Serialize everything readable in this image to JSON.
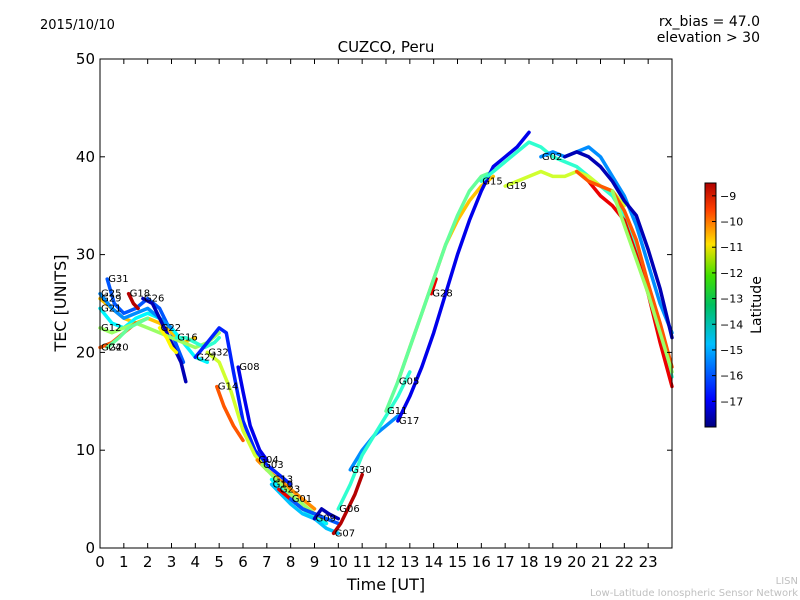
{
  "header": {
    "date": "2015/10/10",
    "rx_bias": "rx_bias = 47.0",
    "elevation": "elevation > 30",
    "title": "CUZCO, Peru"
  },
  "credits": {
    "line1": "LISN",
    "line2": "Low-Latitude Ionospheric Sensor Network"
  },
  "chart_data": {
    "type": "scatter",
    "title": "CUZCO, Peru",
    "xlabel": "Time [UT]",
    "ylabel": "TEC [UNITS]",
    "xlim": [
      0,
      24
    ],
    "ylim": [
      0,
      50
    ],
    "xticks": [
      0,
      1,
      2,
      3,
      4,
      5,
      6,
      7,
      8,
      9,
      10,
      11,
      12,
      13,
      14,
      15,
      16,
      17,
      18,
      19,
      20,
      21,
      22,
      23
    ],
    "yticks": [
      0,
      10,
      20,
      30,
      40,
      50
    ],
    "grid": false,
    "colorbar": {
      "label": "Latitude",
      "range": [
        -18,
        -8.5
      ],
      "ticks": [
        -9,
        -10,
        -11,
        -12,
        -13,
        -14,
        -15,
        -16,
        -17
      ],
      "colormap": "jet"
    },
    "series": [
      {
        "name": "G31",
        "lat": -16.0,
        "x": [
          0.3,
          0.6,
          1.0,
          1.5,
          2.0,
          2.5,
          3.0,
          3.5
        ],
        "y": [
          27.5,
          25.0,
          24.0,
          24.5,
          25.5,
          24.5,
          22.0,
          19.0
        ]
      },
      {
        "name": "G29",
        "lat": -11.5,
        "x": [
          0.0,
          0.5,
          1.0,
          1.5,
          2.0,
          2.5,
          3.0,
          3.5,
          4.0
        ],
        "y": [
          25.5,
          24.5,
          23.5,
          23.0,
          23.5,
          23.0,
          22.0,
          21.0,
          21.5
        ]
      },
      {
        "name": "G21",
        "lat": -14.5,
        "x": [
          0.0,
          0.5,
          1.0,
          1.5,
          2.0,
          2.5,
          3.0,
          3.5,
          4.0,
          4.5
        ],
        "y": [
          24.5,
          23.0,
          22.5,
          23.5,
          24.0,
          23.5,
          22.5,
          21.0,
          19.5,
          19.0
        ]
      },
      {
        "name": "G25",
        "lat": -15.5,
        "x": [
          0.0,
          0.5,
          1.0,
          1.5,
          2.0,
          2.5,
          3.0
        ],
        "y": [
          26.0,
          24.5,
          23.5,
          24.0,
          24.5,
          23.5,
          22.5
        ]
      },
      {
        "name": "G18",
        "lat": -9.0,
        "x": [
          1.2,
          1.4,
          1.6
        ],
        "y": [
          26.0,
          25.0,
          24.5
        ]
      },
      {
        "name": "G26",
        "lat": -17.5,
        "x": [
          1.8,
          2.2,
          2.6,
          3.0,
          3.4,
          3.6
        ],
        "y": [
          25.5,
          25.0,
          23.0,
          21.0,
          19.0,
          17.0
        ]
      },
      {
        "name": "G12",
        "lat": -13.0,
        "x": [
          0.0,
          0.5,
          1.0,
          1.5,
          2.0,
          2.5,
          3.0,
          3.5,
          4.0,
          4.5,
          5.0
        ],
        "y": [
          22.5,
          22.0,
          22.5,
          23.0,
          22.5,
          22.0,
          21.5,
          21.0,
          20.5,
          21.0,
          22.0
        ]
      },
      {
        "name": "G22",
        "lat": -12.0,
        "x": [
          2.5,
          2.8,
          3.0,
          3.2
        ],
        "y": [
          22.5,
          21.5,
          20.5,
          20.0
        ]
      },
      {
        "name": "G16",
        "lat": -14.0,
        "x": [
          3.2,
          3.6,
          4.0,
          4.4,
          4.8,
          5.0
        ],
        "y": [
          21.5,
          21.5,
          21.0,
          20.5,
          21.0,
          21.5
        ]
      },
      {
        "name": "G24",
        "lat": -10.5,
        "x": [
          0.0,
          0.5,
          1.0,
          1.5
        ],
        "y": [
          20.5,
          21.0,
          22.0,
          23.0
        ]
      },
      {
        "name": "G20",
        "lat": -13.5,
        "x": [
          0.3,
          0.8,
          1.2,
          1.6,
          2.0
        ],
        "y": [
          20.5,
          21.5,
          22.5,
          23.0,
          23.5
        ]
      },
      {
        "name": "G27",
        "lat": -16.5,
        "x": [
          4.0,
          4.5,
          5.0,
          5.3,
          5.6,
          6.0,
          6.5,
          7.0,
          7.5,
          8.0
        ],
        "y": [
          19.5,
          21.0,
          22.5,
          22.0,
          18.0,
          13.0,
          10.0,
          8.5,
          7.5,
          6.5
        ]
      },
      {
        "name": "G32",
        "lat": -12.5,
        "x": [
          4.5,
          5.0,
          5.5,
          6.0,
          6.5,
          7.0,
          7.5,
          8.0
        ],
        "y": [
          20.0,
          19.0,
          16.0,
          12.0,
          9.5,
          8.0,
          7.0,
          6.0
        ]
      },
      {
        "name": "G08",
        "lat": -17.0,
        "x": [
          5.8,
          6.0,
          6.3,
          6.7,
          7.0
        ],
        "y": [
          18.5,
          16.0,
          12.5,
          10.0,
          9.0
        ]
      },
      {
        "name": "G14",
        "lat": -10.5,
        "x": [
          4.9,
          5.2,
          5.6,
          6.0
        ],
        "y": [
          16.5,
          14.5,
          12.5,
          11.0
        ]
      },
      {
        "name": "G04",
        "lat": -11.0,
        "x": [
          6.6,
          7.0,
          7.5,
          8.0,
          8.5,
          9.0
        ],
        "y": [
          9.0,
          8.0,
          7.0,
          6.0,
          5.0,
          4.0
        ]
      },
      {
        "name": "G03",
        "lat": -13.0,
        "x": [
          6.8,
          7.2,
          7.6,
          8.0,
          8.5,
          9.0,
          9.5
        ],
        "y": [
          8.5,
          7.5,
          6.5,
          5.5,
          4.5,
          3.5,
          2.5
        ]
      },
      {
        "name": "G13",
        "lat": -14.5,
        "x": [
          7.2,
          7.6,
          8.0,
          8.5,
          9.0,
          9.5
        ],
        "y": [
          7.0,
          6.0,
          5.0,
          4.0,
          3.0,
          2.5
        ]
      },
      {
        "name": "G10",
        "lat": -15.0,
        "x": [
          7.2,
          7.6,
          8.0,
          8.5,
          9.0,
          9.5,
          10.0
        ],
        "y": [
          6.5,
          5.5,
          4.5,
          3.5,
          3.0,
          2.0,
          1.5
        ]
      },
      {
        "name": "G23",
        "lat": -9.5,
        "x": [
          7.5,
          8.0,
          8.5,
          9.0,
          9.5
        ],
        "y": [
          6.0,
          5.0,
          4.0,
          3.5,
          3.0
        ]
      },
      {
        "name": "G01",
        "lat": -16.0,
        "x": [
          8.0,
          8.5,
          9.0,
          9.5,
          10.0
        ],
        "y": [
          5.0,
          4.0,
          3.5,
          3.0,
          2.5
        ]
      },
      {
        "name": "G09",
        "lat": -17.5,
        "x": [
          9.0,
          9.3,
          9.6,
          10.0
        ],
        "y": [
          3.0,
          4.0,
          3.5,
          3.0
        ]
      },
      {
        "name": "G07",
        "lat": -9.0,
        "x": [
          9.8,
          10.1,
          10.4,
          10.7,
          11.0
        ],
        "y": [
          1.5,
          2.5,
          4.0,
          5.5,
          7.5
        ]
      },
      {
        "name": "G30",
        "lat": -15.5,
        "x": [
          10.5,
          11.0,
          11.5,
          12.0,
          12.5
        ],
        "y": [
          8.0,
          10.0,
          11.5,
          12.5,
          13.5
        ]
      },
      {
        "name": "G06",
        "lat": -14.0,
        "x": [
          10.0,
          10.5,
          11.0,
          11.5,
          12.0,
          12.5,
          13.0
        ],
        "y": [
          4.0,
          6.5,
          9.5,
          11.5,
          13.5,
          15.5,
          18.0
        ]
      },
      {
        "name": "G28",
        "lat": -9.5,
        "x": [
          13.9,
          14.1
        ],
        "y": [
          26.0,
          27.5
        ]
      },
      {
        "name": "G05",
        "lat": -11.5,
        "x": [
          12.5,
          13.0,
          13.5,
          14.0,
          14.5,
          15.0,
          15.5,
          16.0,
          16.5
        ],
        "y": [
          17.0,
          20.5,
          24.0,
          27.5,
          31.0,
          33.5,
          35.5,
          37.0,
          38.0
        ]
      },
      {
        "name": "G11",
        "lat": -13.5,
        "x": [
          12.0,
          12.5,
          13.0,
          13.5,
          14.0,
          14.5,
          15.0,
          15.5,
          16.0,
          16.5,
          17.0
        ],
        "y": [
          14.0,
          17.0,
          20.5,
          24.0,
          27.5,
          31.0,
          34.0,
          36.5,
          38.0,
          38.5,
          39.5
        ]
      },
      {
        "name": "G17",
        "lat": -17.0,
        "x": [
          12.5,
          13.0,
          13.5,
          14.0,
          14.5,
          15.0,
          15.5,
          16.0,
          16.5,
          17.0,
          17.5,
          18.0
        ],
        "y": [
          13.0,
          15.5,
          18.5,
          22.0,
          26.0,
          30.0,
          33.5,
          36.5,
          39.0,
          40.0,
          41.0,
          42.5
        ]
      },
      {
        "name": "G15",
        "lat": -14.0,
        "x": [
          16.0,
          16.5,
          17.0,
          17.5,
          18.0,
          18.5,
          19.0,
          19.5,
          20.0,
          20.5,
          21.0,
          21.5,
          22.0,
          22.5,
          23.0,
          23.5,
          24.0
        ],
        "y": [
          37.5,
          38.5,
          39.5,
          40.5,
          41.5,
          41.0,
          40.0,
          39.5,
          39.0,
          38.0,
          37.0,
          36.0,
          34.0,
          31.0,
          27.0,
          22.0,
          17.5
        ]
      },
      {
        "name": "G19",
        "lat": -12.5,
        "x": [
          17.0,
          17.5,
          18.0,
          18.5,
          19.0,
          19.5,
          20.0,
          20.5,
          21.0,
          21.5,
          22.0
        ],
        "y": [
          37.0,
          37.5,
          38.0,
          38.5,
          38.0,
          38.0,
          38.5,
          38.0,
          37.0,
          36.5,
          35.0
        ]
      },
      {
        "name": "G02",
        "lat": -15.5,
        "x": [
          18.5,
          19.0,
          19.5,
          20.0,
          20.5,
          21.0,
          21.5,
          22.0,
          22.5,
          23.0,
          23.5,
          24.0
        ],
        "y": [
          40.0,
          40.5,
          40.0,
          40.5,
          41.0,
          40.0,
          38.0,
          36.0,
          33.0,
          29.0,
          25.0,
          22.0
        ]
      },
      {
        "name": "",
        "lat": -17.5,
        "x": [
          19.5,
          20.0,
          20.5,
          21.0,
          21.5,
          22.0,
          22.5,
          23.0,
          23.5,
          24.0
        ],
        "y": [
          40.0,
          40.5,
          40.0,
          39.0,
          37.5,
          35.5,
          34.0,
          30.5,
          26.5,
          21.5
        ]
      },
      {
        "name": "",
        "lat": -9.5,
        "x": [
          20.5,
          21.0,
          21.5,
          22.0,
          22.5,
          23.0,
          23.5,
          24.0
        ],
        "y": [
          37.5,
          36.0,
          35.0,
          33.5,
          30.0,
          26.0,
          21.0,
          16.5
        ]
      },
      {
        "name": "",
        "lat": -10.5,
        "x": [
          20.0,
          20.5,
          21.0,
          21.5,
          22.0,
          22.5,
          23.0,
          23.5,
          24.0
        ],
        "y": [
          38.5,
          37.5,
          37.0,
          36.5,
          34.5,
          31.5,
          27.0,
          23.0,
          18.5
        ]
      },
      {
        "name": "",
        "lat": -13.0,
        "x": [
          21.5,
          22.0,
          22.5,
          23.0,
          23.5,
          24.0
        ],
        "y": [
          36.5,
          33.0,
          29.5,
          26.0,
          22.0,
          18.0
        ]
      }
    ]
  }
}
